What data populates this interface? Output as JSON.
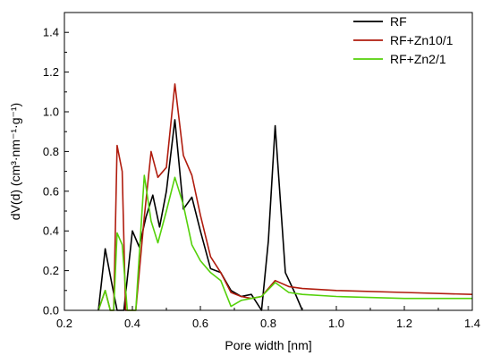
{
  "chart_data": {
    "type": "line",
    "xlabel": "Pore width [nm]",
    "ylabel": "dV(d) (cm³·nm⁻¹·g⁻¹)",
    "xlim": [
      0.2,
      1.4
    ],
    "ylim": [
      0.0,
      1.5
    ],
    "x_ticks": [
      "0.2",
      "0.4",
      "0.6",
      "0.8",
      "1.0",
      "1.2",
      "1.4"
    ],
    "y_ticks": [
      "0.0",
      "0.2",
      "0.4",
      "0.6",
      "0.8",
      "1.0",
      "1.2",
      "1.4"
    ],
    "grid": false,
    "legend_position": "top-right",
    "series": [
      {
        "name": "RF",
        "color": "#000000",
        "points": [
          [
            0.3,
            0.0
          ],
          [
            0.32,
            0.31
          ],
          [
            0.34,
            0.13
          ],
          [
            0.355,
            0.0
          ],
          [
            0.375,
            0.0
          ],
          [
            0.4,
            0.4
          ],
          [
            0.42,
            0.32
          ],
          [
            0.44,
            0.47
          ],
          [
            0.46,
            0.58
          ],
          [
            0.48,
            0.42
          ],
          [
            0.5,
            0.6
          ],
          [
            0.525,
            0.96
          ],
          [
            0.55,
            0.51
          ],
          [
            0.575,
            0.57
          ],
          [
            0.6,
            0.4
          ],
          [
            0.63,
            0.21
          ],
          [
            0.66,
            0.19
          ],
          [
            0.69,
            0.1
          ],
          [
            0.72,
            0.07
          ],
          [
            0.75,
            0.08
          ],
          [
            0.78,
            0.0
          ],
          [
            0.8,
            0.35
          ],
          [
            0.82,
            0.93
          ],
          [
            0.85,
            0.19
          ],
          [
            0.88,
            0.08
          ],
          [
            0.9,
            0.0
          ]
        ]
      },
      {
        "name": "RF+Zn10/1",
        "color": "#b01c0e",
        "points": [
          [
            0.3,
            0.0
          ],
          [
            0.32,
            0.1
          ],
          [
            0.335,
            0.0
          ],
          [
            0.345,
            0.0
          ],
          [
            0.355,
            0.83
          ],
          [
            0.37,
            0.7
          ],
          [
            0.38,
            0.0
          ],
          [
            0.41,
            0.0
          ],
          [
            0.435,
            0.47
          ],
          [
            0.455,
            0.8
          ],
          [
            0.475,
            0.67
          ],
          [
            0.5,
            0.72
          ],
          [
            0.525,
            1.14
          ],
          [
            0.55,
            0.78
          ],
          [
            0.575,
            0.68
          ],
          [
            0.6,
            0.48
          ],
          [
            0.63,
            0.27
          ],
          [
            0.66,
            0.19
          ],
          [
            0.69,
            0.09
          ],
          [
            0.72,
            0.07
          ],
          [
            0.75,
            0.06
          ],
          [
            0.78,
            0.07
          ],
          [
            0.82,
            0.15
          ],
          [
            0.86,
            0.12
          ],
          [
            0.9,
            0.11
          ],
          [
            1.0,
            0.1
          ],
          [
            1.2,
            0.09
          ],
          [
            1.4,
            0.08
          ]
        ]
      },
      {
        "name": "RF+Zn2/1",
        "color": "#55d10a",
        "points": [
          [
            0.3,
            0.0
          ],
          [
            0.32,
            0.1
          ],
          [
            0.335,
            0.0
          ],
          [
            0.345,
            0.0
          ],
          [
            0.355,
            0.39
          ],
          [
            0.37,
            0.33
          ],
          [
            0.385,
            0.0
          ],
          [
            0.41,
            0.0
          ],
          [
            0.435,
            0.68
          ],
          [
            0.455,
            0.45
          ],
          [
            0.475,
            0.34
          ],
          [
            0.5,
            0.5
          ],
          [
            0.525,
            0.67
          ],
          [
            0.55,
            0.53
          ],
          [
            0.575,
            0.33
          ],
          [
            0.6,
            0.25
          ],
          [
            0.63,
            0.19
          ],
          [
            0.66,
            0.15
          ],
          [
            0.69,
            0.02
          ],
          [
            0.72,
            0.05
          ],
          [
            0.75,
            0.06
          ],
          [
            0.78,
            0.07
          ],
          [
            0.82,
            0.14
          ],
          [
            0.86,
            0.09
          ],
          [
            0.9,
            0.08
          ],
          [
            1.0,
            0.07
          ],
          [
            1.2,
            0.06
          ],
          [
            1.4,
            0.06
          ]
        ]
      }
    ]
  }
}
